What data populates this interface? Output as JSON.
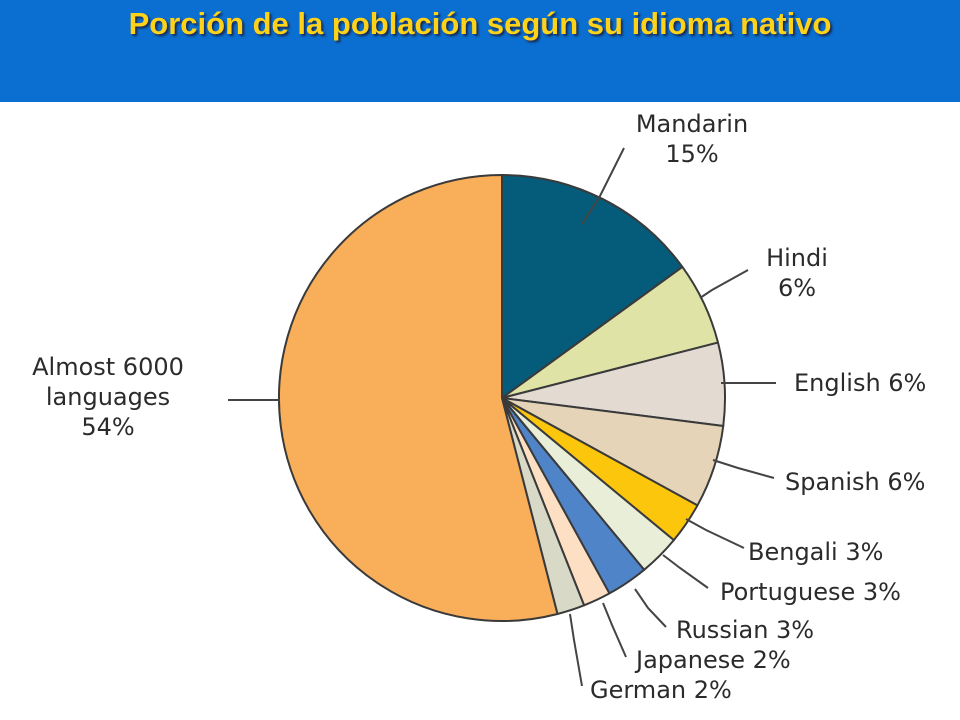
{
  "title": "Porción de la población según su idioma nativo",
  "chart_data": {
    "type": "pie",
    "slices": [
      {
        "label_lines": [
          "Mandarin",
          "15%"
        ],
        "value": 15,
        "color": "#045b7a"
      },
      {
        "label_lines": [
          "Hindi",
          "6%"
        ],
        "value": 6,
        "color": "#dfe3a6"
      },
      {
        "label_lines": [
          "English 6%"
        ],
        "value": 6,
        "color": "#e3dad2"
      },
      {
        "label_lines": [
          "Spanish 6%"
        ],
        "value": 6,
        "color": "#e5d4b8"
      },
      {
        "label_lines": [
          "Bengali 3%"
        ],
        "value": 3,
        "color": "#fcc60c"
      },
      {
        "label_lines": [
          "Portuguese 3%"
        ],
        "value": 3,
        "color": "#e8eed8"
      },
      {
        "label_lines": [
          "Russian 3%"
        ],
        "value": 3,
        "color": "#4f84c8"
      },
      {
        "label_lines": [
          "Japanese 2%"
        ],
        "value": 2,
        "color": "#fde0c4"
      },
      {
        "label_lines": [
          "German 2%"
        ],
        "value": 2,
        "color": "#d9d9c8"
      },
      {
        "label_lines": [
          "Almost 6000",
          "languages",
          "54%"
        ],
        "value": 54,
        "color": "#f9ae59"
      }
    ],
    "start_angle_deg": 0,
    "direction": "clockwise"
  }
}
